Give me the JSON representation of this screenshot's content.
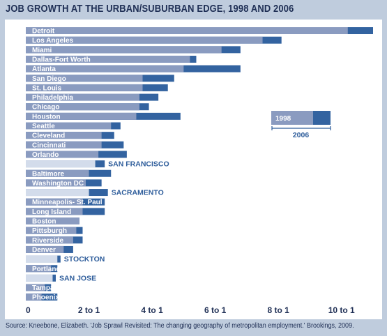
{
  "title": "JOB GROWTH AT THE URBAN/SUBURBAN EDGE, 1998 AND 2006",
  "source": "Source: Kneebone, Elizabeth. 'Job Sprawl Revisited: The changing geography of metropolitan employment.' Brookings, 2009.",
  "colors": {
    "bar_1998": "#8a9bc0",
    "bar_2006": "#3363a0",
    "bar_1998_light": "#d3dceb",
    "outside_label": "#2e5d9b",
    "background": "#bfccdd",
    "panel": "#ffffff"
  },
  "chart_data": {
    "type": "bar",
    "orientation": "horizontal",
    "categories": [
      "Detroit",
      "Los Angeles",
      "Miami",
      "Dallas-Fort Worth",
      "Atlanta",
      "San Diego",
      "St. Louis",
      "Philadelphia",
      "Chicago",
      "Houston",
      "Seattle",
      "Cleveland",
      "Cincinnati",
      "Orlando",
      "SAN FRANCISCO",
      "Baltimore",
      "Washington DC",
      "SACRAMENTO",
      "Minneapolis- St. Paul",
      "Long Island",
      "Boston",
      "Pittsburgh",
      "Riverside",
      "Denver",
      "STOCKTON",
      "Portland OR",
      "SAN JOSE",
      "Tampa",
      "Phoenix"
    ],
    "label_outside": [
      false,
      false,
      false,
      false,
      false,
      false,
      false,
      false,
      false,
      false,
      false,
      false,
      false,
      false,
      true,
      false,
      false,
      true,
      false,
      false,
      false,
      false,
      false,
      false,
      true,
      false,
      true,
      false,
      false
    ],
    "light_1998": [
      false,
      false,
      false,
      false,
      false,
      false,
      false,
      false,
      false,
      false,
      false,
      false,
      false,
      false,
      true,
      false,
      false,
      true,
      false,
      false,
      false,
      false,
      false,
      false,
      true,
      false,
      true,
      false,
      false
    ],
    "series": [
      {
        "name": "1998",
        "values": [
          10.2,
          7.5,
          6.2,
          5.2,
          5.0,
          3.7,
          3.7,
          3.6,
          3.6,
          3.5,
          2.7,
          2.4,
          2.4,
          2.3,
          2.2,
          2.0,
          1.9,
          2.0,
          1.8,
          1.8,
          1.7,
          1.6,
          1.5,
          1.2,
          1.0,
          0.8,
          0.85,
          0.6,
          0.5
        ]
      },
      {
        "name": "2006",
        "values": [
          11.0,
          8.1,
          6.8,
          5.4,
          6.8,
          4.7,
          4.5,
          4.2,
          3.9,
          4.9,
          3.0,
          2.8,
          3.1,
          3.2,
          2.5,
          2.7,
          2.4,
          2.6,
          2.5,
          2.5,
          1.7,
          1.8,
          1.8,
          1.5,
          1.1,
          1.0,
          0.95,
          0.8,
          1.0
        ]
      }
    ],
    "xlim": [
      0,
      11
    ],
    "x_ticks": [
      "0",
      "2 to 1",
      "4 to 1",
      "6 to 1",
      "8 to 1",
      "10 to 1"
    ],
    "legend": {
      "label_1998": "1998",
      "label_2006": "2006",
      "placement": "right"
    }
  }
}
